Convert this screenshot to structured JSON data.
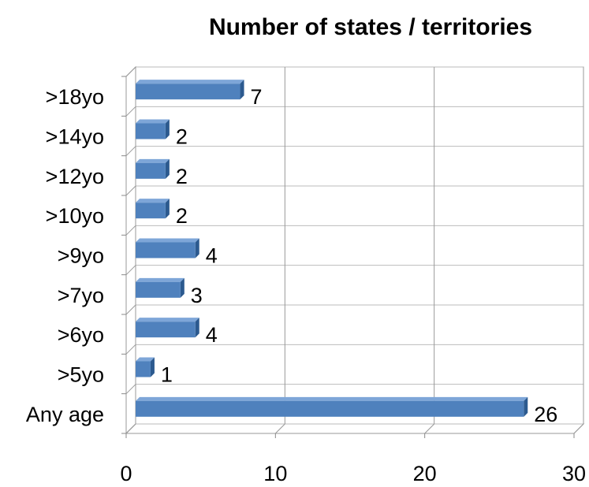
{
  "chart_data": {
    "type": "bar",
    "orientation": "horizontal",
    "title": "Number of states / territories",
    "categories": [
      "Any age",
      ">5yo",
      ">6yo",
      ">7yo",
      ">9yo",
      ">10yo",
      ">12yo",
      ">14yo",
      ">18yo"
    ],
    "values": [
      26,
      1,
      4,
      3,
      4,
      2,
      2,
      2,
      7
    ],
    "color": "#4f81bd",
    "xlim": [
      0,
      30
    ],
    "xticks": [
      0,
      10,
      20,
      30
    ],
    "grid": true
  }
}
